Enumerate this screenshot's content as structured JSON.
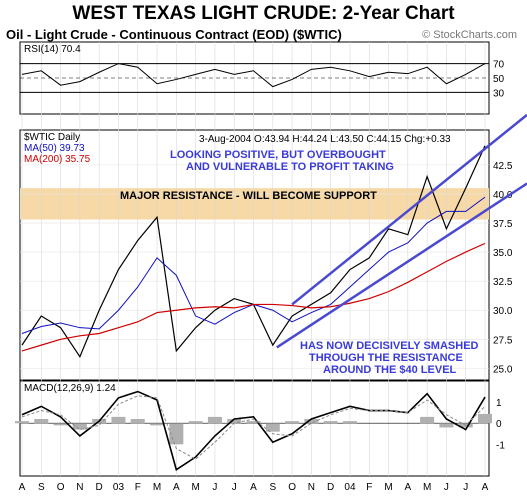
{
  "title": "WEST TEXAS LIGHT CRUDE: 2-Year Chart",
  "subtitle": "Oil - Light Crude - Continuous Contract (EOD) ($WTIC)",
  "credit": "© StockCharts.com",
  "colors": {
    "price": "#000000",
    "ma50": "#1010c0",
    "ma200": "#d00000",
    "channel": "#4a4ad0",
    "band": "#f7d9a8",
    "annotation": "#3a3ad8",
    "histogram": "#b0b0b0"
  },
  "chart_data": [
    {
      "type": "line",
      "panel": "rsi",
      "label": "RSI(14)",
      "last_value": "70.4",
      "ylim": [
        0,
        100
      ],
      "yticks": [
        30,
        50,
        70
      ],
      "x": [
        "2002-08",
        "2002-09",
        "2002-10",
        "2002-11",
        "2002-12",
        "2003-01",
        "2003-02",
        "2003-03",
        "2003-04",
        "2003-05",
        "2003-06",
        "2003-07",
        "2003-08",
        "2003-09",
        "2003-10",
        "2003-11",
        "2003-12",
        "2004-01",
        "2004-02",
        "2004-03",
        "2004-04",
        "2004-05",
        "2004-06",
        "2004-07",
        "2004-08"
      ],
      "values": [
        55,
        60,
        40,
        45,
        58,
        70,
        65,
        42,
        48,
        55,
        62,
        55,
        60,
        38,
        48,
        62,
        65,
        60,
        52,
        58,
        56,
        65,
        42,
        55,
        70
      ]
    },
    {
      "type": "line",
      "panel": "price",
      "label": "$WTIC Daily",
      "info": "3-Aug-2004 O:43.94 H:44.24 L:43.50 C:44.15 Chg:+0.33",
      "ma50_label": "MA(50) 39.73",
      "ma200_label": "MA(200) 35.75",
      "ylim": [
        24.0,
        45.5
      ],
      "yticks": [
        "25.0",
        "27.5",
        "30.0",
        "32.5",
        "35.0",
        "37.5",
        "40.0",
        "42.5"
      ],
      "x": [
        "2002-08",
        "2002-09",
        "2002-10",
        "2002-11",
        "2002-12",
        "2003-01",
        "2003-02",
        "2003-03",
        "2003-04",
        "2003-05",
        "2003-06",
        "2003-07",
        "2003-08",
        "2003-09",
        "2003-10",
        "2003-11",
        "2003-12",
        "2004-01",
        "2004-02",
        "2004-03",
        "2004-04",
        "2004-05",
        "2004-06",
        "2004-07",
        "2004-08"
      ],
      "series": [
        {
          "name": "$WTIC Daily",
          "values": [
            27.0,
            29.5,
            28.5,
            26.0,
            30.0,
            33.5,
            36.0,
            38.0,
            26.5,
            28.5,
            30.0,
            31.0,
            30.5,
            27.0,
            29.5,
            30.5,
            31.5,
            33.5,
            34.5,
            37.0,
            36.5,
            41.5,
            37.0,
            40.5,
            44.15
          ]
        },
        {
          "name": "MA(50)",
          "values": [
            28.0,
            28.6,
            28.9,
            28.5,
            28.4,
            30.0,
            32.0,
            34.5,
            33.0,
            29.5,
            28.8,
            29.8,
            30.5,
            30.0,
            29.0,
            29.8,
            30.5,
            32.0,
            33.5,
            35.0,
            35.8,
            37.5,
            38.5,
            38.5,
            39.73
          ]
        },
        {
          "name": "MA(200)",
          "values": [
            26.5,
            27.0,
            27.5,
            27.8,
            28.0,
            28.5,
            29.0,
            29.8,
            30.0,
            30.2,
            30.3,
            30.2,
            30.5,
            30.5,
            30.4,
            30.2,
            30.3,
            30.6,
            31.0,
            31.6,
            32.4,
            33.3,
            34.2,
            35.0,
            35.75
          ]
        }
      ],
      "annotations": [
        "LOOKING POSITIVE, BUT OVERBOUGHT",
        "AND VULNERABLE TO PROFIT TAKING",
        "MAJOR RESISTANCE - WILL BECOME SUPPORT",
        "HAS NOW DECISIVELY SMASHED",
        "THROUGH THE RESISTANCE",
        "AROUND THE $40 LEVEL"
      ],
      "resistance_band": [
        37.8,
        40.5
      ]
    },
    {
      "type": "line",
      "panel": "macd",
      "label": "MACD(12,26,9)",
      "last_value": "1.24",
      "yticks": [
        "1",
        "0",
        "-1"
      ],
      "ylim": [
        -2.5,
        2.0
      ],
      "x": [
        "2002-08",
        "2002-09",
        "2002-10",
        "2002-11",
        "2002-12",
        "2003-01",
        "2003-02",
        "2003-03",
        "2003-04",
        "2003-05",
        "2003-06",
        "2003-07",
        "2003-08",
        "2003-09",
        "2003-10",
        "2003-11",
        "2003-12",
        "2004-01",
        "2004-02",
        "2004-03",
        "2004-04",
        "2004-05",
        "2004-06",
        "2004-07",
        "2004-08"
      ],
      "series": [
        {
          "name": "MACD",
          "values": [
            0.4,
            0.8,
            0.3,
            -0.6,
            0.1,
            1.2,
            1.5,
            1.1,
            -2.2,
            -1.6,
            -0.6,
            0.2,
            0.3,
            -0.9,
            -0.5,
            0.2,
            0.5,
            0.8,
            0.6,
            0.6,
            0.5,
            1.4,
            0.2,
            -0.3,
            1.24
          ]
        },
        {
          "name": "Signal",
          "values": [
            0.3,
            0.6,
            0.4,
            -0.3,
            -0.1,
            0.9,
            1.3,
            1.2,
            -1.2,
            -1.7,
            -0.9,
            0.0,
            0.2,
            -0.5,
            -0.6,
            0.0,
            0.4,
            0.7,
            0.6,
            0.6,
            0.5,
            1.1,
            0.4,
            -0.1,
            0.8
          ]
        }
      ]
    }
  ],
  "x_axis_labels": [
    "A",
    "S",
    "O",
    "N",
    "D",
    "03",
    "F",
    "M",
    "A",
    "M",
    "J",
    "J",
    "A",
    "S",
    "O",
    "N",
    "D",
    "04",
    "F",
    "M",
    "A",
    "M",
    "J",
    "J",
    "A"
  ]
}
